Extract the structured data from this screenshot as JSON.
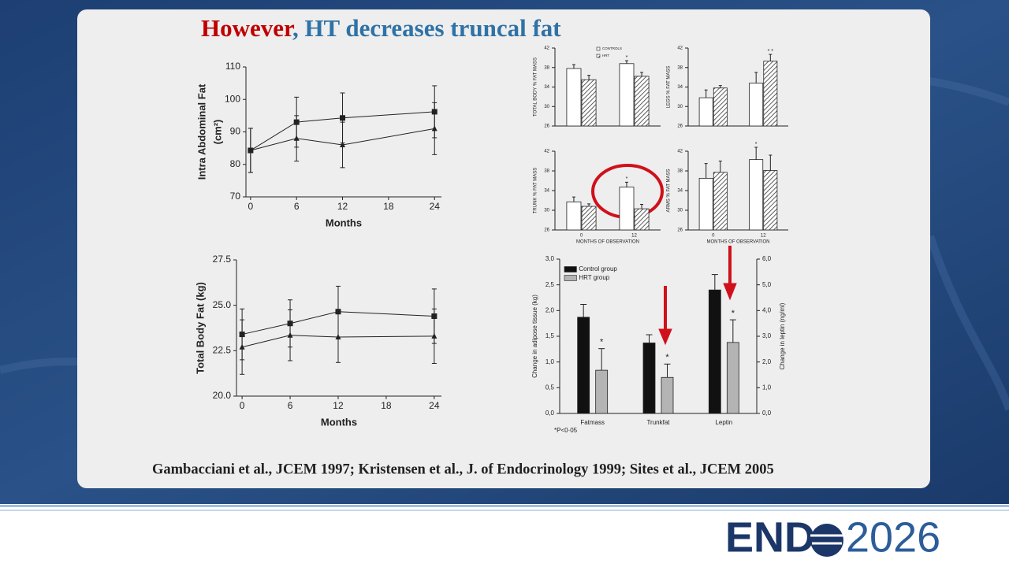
{
  "title": {
    "part1": "However",
    "part2": ", HT decreases truncal fat"
  },
  "citation": "Gambacciani et al., JCEM 1997; Kristensen et al.,  J. of Endocrinology 1999; Sites et al.,  JCEM 2005",
  "logo": {
    "left": "END",
    "right": "2026"
  },
  "chart_data": [
    {
      "type": "line",
      "ylabel": [
        "Intra Abdominal Fat",
        "(cm²)"
      ],
      "xlabel": "Months",
      "x": [
        0,
        6,
        12,
        24
      ],
      "xlim": [
        -0.6,
        24.9
      ],
      "xticks": [
        0,
        6,
        12,
        18,
        24
      ],
      "ylim": [
        70,
        110
      ],
      "yticks": [
        70,
        80,
        90,
        100,
        110
      ],
      "series": [
        {
          "marker": "square",
          "color": "#222222",
          "values": [
            84.3,
            93,
            94.3,
            96.2
          ],
          "errors": [
            6.8,
            7.7,
            7.7,
            8
          ]
        },
        {
          "marker": "triangle",
          "color": "#222222",
          "values": [
            84.3,
            88,
            86,
            91
          ],
          "errors": [
            6.8,
            7,
            7,
            8
          ]
        }
      ]
    },
    {
      "type": "line",
      "ylabel": [
        "Total Body Fat (kg)"
      ],
      "xlabel": "Months",
      "x": [
        0,
        6,
        12,
        24
      ],
      "xlim": [
        -0.7,
        24.9
      ],
      "xticks": [
        0,
        6,
        12,
        18,
        24
      ],
      "ylim": [
        20,
        27.5
      ],
      "yticks": [
        {
          "value": 20,
          "label": "20.0"
        },
        {
          "value": 22.5,
          "label": "22.5"
        },
        {
          "value": 25,
          "label": "25.0"
        },
        {
          "value": 27.5,
          "label": "27.5"
        }
      ],
      "series": [
        {
          "marker": "square",
          "color": "#222222",
          "values": [
            23.4,
            24,
            24.65,
            24.4
          ],
          "errors": [
            1.4,
            1.3,
            1.4,
            1.5
          ]
        },
        {
          "marker": "triangle",
          "color": "#222222",
          "values": [
            22.7,
            23.35,
            23.25,
            23.3
          ],
          "errors": [
            1.5,
            1.4,
            1.4,
            1.5
          ]
        }
      ]
    },
    {
      "type": "bar",
      "ylabel": "TOTAL BODY % FAT MASS",
      "categories": [
        null,
        null
      ],
      "ylim": [
        26,
        42
      ],
      "yticks": [
        26,
        30,
        34,
        38,
        42
      ],
      "legend": "upper center",
      "series": [
        {
          "name": "CONTROLS",
          "fill": "#ffffff",
          "values": [
            37.8,
            38.8
          ],
          "errors": [
            0.8,
            0.6
          ],
          "significance": [
            null,
            "*"
          ]
        },
        {
          "name": "HRT",
          "fill": "hatched",
          "values": [
            35.5,
            36.2
          ],
          "errors": [
            0.9,
            0.8
          ]
        }
      ]
    },
    {
      "type": "bar",
      "ylabel": "LEGS % FAT MASS",
      "categories": [
        null,
        null
      ],
      "ylim": [
        26,
        42
      ],
      "yticks": [
        26,
        30,
        34,
        38,
        42
      ],
      "series": [
        {
          "fill": "#ffffff",
          "values": [
            31.8,
            34.8
          ],
          "errors": [
            1.6,
            2.2
          ]
        },
        {
          "fill": "hatched",
          "values": [
            33.8,
            39.3
          ],
          "errors": [
            0.5,
            1.4
          ],
          "significance": [
            null,
            "* *"
          ]
        }
      ]
    },
    {
      "type": "bar",
      "ylabel": "TRUNK % FAT MASS",
      "xlabel": "MONTHS OF OBSERVATION",
      "categories": [
        "0",
        "12"
      ],
      "ylim": [
        26,
        42
      ],
      "yticks": [
        26,
        30,
        34,
        38,
        42
      ],
      "series": [
        {
          "fill": "#ffffff",
          "values": [
            31.7,
            34.7
          ],
          "errors": [
            1,
            1
          ],
          "significance": [
            null,
            "*"
          ]
        },
        {
          "fill": "hatched",
          "values": [
            30.8,
            30.3
          ],
          "errors": [
            0.5,
            0.9
          ]
        }
      ]
    },
    {
      "type": "bar",
      "ylabel": "ARMS % FAT MASS",
      "xlabel": "MONTHS OF OBSERVATION",
      "categories": [
        "0",
        "12"
      ],
      "ylim": [
        26,
        42
      ],
      "yticks": [
        26,
        30,
        34,
        38,
        42
      ],
      "series": [
        {
          "fill": "#ffffff",
          "values": [
            36.5,
            40.3
          ],
          "errors": [
            3,
            2.5
          ],
          "significance": [
            null,
            "*"
          ]
        },
        {
          "fill": "hatched",
          "values": [
            37.7,
            38.1
          ],
          "errors": [
            2.3,
            3.1
          ]
        }
      ]
    },
    {
      "type": "bar",
      "ylabel": "Change in adipose tissue (kg)",
      "y2label": "Change in leptin (ng/ml)",
      "categories": [
        "Fatmass",
        "Trunkfat",
        "Leptin"
      ],
      "category_axis": [
        "y",
        "y",
        "y2"
      ],
      "ylim": [
        0,
        3
      ],
      "yticks": [
        {
          "value": 0,
          "label": "0,0"
        },
        {
          "value": 0.5,
          "label": "0,5"
        },
        {
          "value": 1,
          "label": "1,0"
        },
        {
          "value": 1.5,
          "label": "1,5"
        },
        {
          "value": 2,
          "label": "2,0"
        },
        {
          "value": 2.5,
          "label": "2,5"
        },
        {
          "value": 3,
          "label": "3,0"
        }
      ],
      "y2lim": [
        0,
        6
      ],
      "y2ticks": [
        {
          "value": 0,
          "label": "0,0"
        },
        {
          "value": 1,
          "label": "1,0"
        },
        {
          "value": 2,
          "label": "2,0"
        },
        {
          "value": 3,
          "label": "3,0"
        },
        {
          "value": 4,
          "label": "4,0"
        },
        {
          "value": 5,
          "label": "5,0"
        },
        {
          "value": 6,
          "label": "6,0"
        }
      ],
      "legend": "upper left",
      "footnote": "*P<0·05",
      "series": [
        {
          "name": "Control group",
          "fill": "#111111",
          "values": [
            1.87,
            1.37,
            4.8
          ],
          "errors": [
            0.25,
            0.16,
            0.6
          ]
        },
        {
          "name": "HRT group",
          "fill": "#b4b4b4",
          "values": [
            0.84,
            0.7,
            2.76
          ],
          "errors": [
            0.42,
            0.26,
            0.88
          ],
          "significance": [
            "*",
            "*",
            "*"
          ]
        }
      ]
    }
  ]
}
